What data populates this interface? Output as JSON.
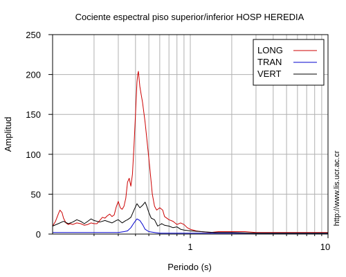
{
  "chart_data": {
    "type": "line",
    "title": "Cociente espectral piso superior/inferior  HOSP HEREDIA",
    "xlabel": "Periodo (s)",
    "ylabel": "Amplitud",
    "xscale": "log",
    "xlim": [
      0.1,
      10
    ],
    "ylim": [
      0,
      250
    ],
    "yticks": [
      "0",
      "50",
      "100",
      "150",
      "200",
      "250"
    ],
    "xticks": [
      {
        "value": 1,
        "label": "1"
      },
      {
        "value": 10,
        "label": "10"
      }
    ],
    "grid": true,
    "legend_position": "top-right",
    "source_text": "http://www.lis.ucr.ac.cr",
    "series": [
      {
        "name": "LONG",
        "color": "#cc0000",
        "points": [
          [
            0.1,
            10
          ],
          [
            0.105,
            16
          ],
          [
            0.11,
            25
          ],
          [
            0.113,
            30
          ],
          [
            0.117,
            27
          ],
          [
            0.12,
            20
          ],
          [
            0.125,
            14
          ],
          [
            0.13,
            12
          ],
          [
            0.135,
            13
          ],
          [
            0.14,
            12
          ],
          [
            0.15,
            14
          ],
          [
            0.16,
            13
          ],
          [
            0.17,
            11
          ],
          [
            0.18,
            12
          ],
          [
            0.19,
            14
          ],
          [
            0.2,
            13
          ],
          [
            0.21,
            13
          ],
          [
            0.22,
            17
          ],
          [
            0.23,
            21
          ],
          [
            0.24,
            20
          ],
          [
            0.25,
            23
          ],
          [
            0.26,
            25
          ],
          [
            0.27,
            22
          ],
          [
            0.28,
            24
          ],
          [
            0.29,
            34
          ],
          [
            0.3,
            41
          ],
          [
            0.31,
            33
          ],
          [
            0.32,
            31
          ],
          [
            0.33,
            35
          ],
          [
            0.34,
            45
          ],
          [
            0.35,
            65
          ],
          [
            0.36,
            70
          ],
          [
            0.37,
            60
          ],
          [
            0.38,
            75
          ],
          [
            0.39,
            110
          ],
          [
            0.4,
            150
          ],
          [
            0.41,
            190
          ],
          [
            0.415,
            200
          ],
          [
            0.42,
            204
          ],
          [
            0.43,
            185
          ],
          [
            0.44,
            175
          ],
          [
            0.45,
            165
          ],
          [
            0.47,
            140
          ],
          [
            0.49,
            110
          ],
          [
            0.51,
            80
          ],
          [
            0.53,
            50
          ],
          [
            0.55,
            35
          ],
          [
            0.57,
            30
          ],
          [
            0.6,
            33
          ],
          [
            0.63,
            30
          ],
          [
            0.65,
            22
          ],
          [
            0.7,
            18
          ],
          [
            0.75,
            16
          ],
          [
            0.8,
            12
          ],
          [
            0.85,
            14
          ],
          [
            0.9,
            12
          ],
          [
            0.95,
            8
          ],
          [
            1.0,
            6
          ],
          [
            1.1,
            4
          ],
          [
            1.2,
            3
          ],
          [
            1.4,
            2
          ],
          [
            1.6,
            3
          ],
          [
            2.0,
            3
          ],
          [
            2.5,
            3
          ],
          [
            3.0,
            2
          ],
          [
            4.0,
            2
          ],
          [
            5.0,
            2
          ],
          [
            6.0,
            2
          ],
          [
            7.0,
            2
          ],
          [
            8.0,
            2
          ],
          [
            10.0,
            2
          ]
        ]
      },
      {
        "name": "TRAN",
        "color": "#0000cc",
        "points": [
          [
            0.1,
            2
          ],
          [
            0.15,
            2
          ],
          [
            0.2,
            2
          ],
          [
            0.25,
            2
          ],
          [
            0.3,
            2
          ],
          [
            0.33,
            3
          ],
          [
            0.35,
            4
          ],
          [
            0.37,
            8
          ],
          [
            0.39,
            14
          ],
          [
            0.41,
            19
          ],
          [
            0.43,
            17
          ],
          [
            0.45,
            12
          ],
          [
            0.47,
            6
          ],
          [
            0.5,
            3
          ],
          [
            0.55,
            2
          ],
          [
            0.6,
            1
          ],
          [
            0.8,
            1
          ],
          [
            1.0,
            1
          ],
          [
            1.5,
            1
          ],
          [
            2.0,
            1
          ],
          [
            3.0,
            1
          ],
          [
            5.0,
            1
          ],
          [
            10.0,
            1
          ]
        ]
      },
      {
        "name": "VERT",
        "color": "#000000",
        "points": [
          [
            0.1,
            10
          ],
          [
            0.11,
            13
          ],
          [
            0.12,
            16
          ],
          [
            0.13,
            13
          ],
          [
            0.14,
            15
          ],
          [
            0.15,
            18
          ],
          [
            0.16,
            16
          ],
          [
            0.17,
            13
          ],
          [
            0.18,
            16
          ],
          [
            0.19,
            19
          ],
          [
            0.2,
            17
          ],
          [
            0.22,
            15
          ],
          [
            0.24,
            17
          ],
          [
            0.25,
            16
          ],
          [
            0.27,
            14
          ],
          [
            0.29,
            17
          ],
          [
            0.3,
            18
          ],
          [
            0.32,
            14
          ],
          [
            0.34,
            17
          ],
          [
            0.35,
            18
          ],
          [
            0.37,
            21
          ],
          [
            0.39,
            30
          ],
          [
            0.41,
            38
          ],
          [
            0.43,
            33
          ],
          [
            0.45,
            36
          ],
          [
            0.47,
            40
          ],
          [
            0.48,
            36
          ],
          [
            0.5,
            27
          ],
          [
            0.52,
            20
          ],
          [
            0.55,
            18
          ],
          [
            0.58,
            10
          ],
          [
            0.62,
            13
          ],
          [
            0.65,
            11
          ],
          [
            0.7,
            10
          ],
          [
            0.75,
            8
          ],
          [
            0.8,
            9
          ],
          [
            0.85,
            6
          ],
          [
            0.9,
            5
          ],
          [
            1.0,
            4
          ],
          [
            1.2,
            3
          ],
          [
            1.5,
            2
          ],
          [
            2.0,
            2
          ],
          [
            3.0,
            1
          ],
          [
            5.0,
            1
          ],
          [
            10.0,
            1
          ]
        ]
      }
    ]
  }
}
